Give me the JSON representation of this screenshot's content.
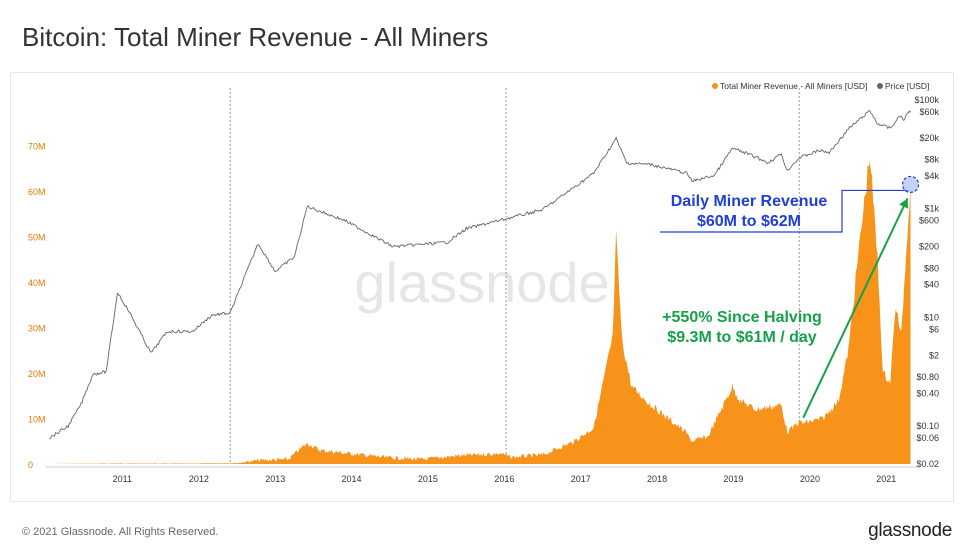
{
  "header": {
    "title": "Bitcoin: Total Miner Revenue - All Miners"
  },
  "footer": {
    "copyright": "© 2021 Glassnode. All Rights Reserved.",
    "brand": "glassnode"
  },
  "watermark": "glassnode",
  "colors": {
    "revenue": "#f7931a",
    "price": "#666666",
    "annotation_blue": "#1f3fd6",
    "annotation_green": "#17a04a"
  },
  "chart_data": {
    "type": "area",
    "title": "",
    "legend": {
      "placement": "top-right",
      "entries": [
        {
          "name": "Total Miner Revenue - All Miners [USD]",
          "color": "#f7931a"
        },
        {
          "name": "Price [USD]",
          "color": "#666666"
        }
      ]
    },
    "x": {
      "type": "date",
      "range": [
        "2010-07-01",
        "2021-11-01"
      ],
      "tick_labels": [
        "2011",
        "2012",
        "2013",
        "2014",
        "2015",
        "2016",
        "2017",
        "2018",
        "2019",
        "2020",
        "2021"
      ]
    },
    "y_left": {
      "label": "",
      "range": [
        0,
        80000000
      ],
      "tick_values": [
        0,
        10000000,
        20000000,
        30000000,
        40000000,
        50000000,
        60000000,
        70000000
      ],
      "tick_labels": [
        "0",
        "10M",
        "20M",
        "30M",
        "40M",
        "50M",
        "60M",
        "70M"
      ]
    },
    "y_right": {
      "label": "",
      "scale": "log",
      "range": [
        0.02,
        100000
      ],
      "tick_values": [
        0.02,
        0.06,
        0.1,
        0.4,
        0.8,
        2,
        6,
        10,
        40,
        80,
        200,
        600,
        1000,
        4000,
        8000,
        20000,
        60000,
        100000
      ],
      "tick_labels": [
        "$0.02",
        "$0.06",
        "$0.10",
        "$0.40",
        "$0.80",
        "$2",
        "$6",
        "$10",
        "$40",
        "$80",
        "$200",
        "$600",
        "$1k",
        "$4k",
        "$8k",
        "$20k",
        "$60k",
        "$100k"
      ]
    },
    "grid": {
      "horizontal": false,
      "vertical_dotted_at": [
        "2012-11-28",
        "2016-07-09",
        "2020-05-11"
      ]
    },
    "series": [
      {
        "name": "Total Miner Revenue - All Miners [USD]",
        "axis": "left",
        "points": [
          [
            "2010-07-01",
            1000
          ],
          [
            "2011-06-01",
            100000
          ],
          [
            "2012-06-01",
            80000
          ],
          [
            "2013-01-01",
            200000
          ],
          [
            "2013-04-10",
            800000
          ],
          [
            "2013-09-01",
            1000000
          ],
          [
            "2013-11-15",
            4000000
          ],
          [
            "2013-12-05",
            4500000
          ],
          [
            "2014-02-01",
            3000000
          ],
          [
            "2014-06-01",
            2400000
          ],
          [
            "2014-12-01",
            1500000
          ],
          [
            "2015-06-01",
            1000000
          ],
          [
            "2015-11-15",
            1800000
          ],
          [
            "2016-06-15",
            2300000
          ],
          [
            "2016-08-01",
            1500000
          ],
          [
            "2016-12-31",
            2000000
          ],
          [
            "2017-06-01",
            5000000
          ],
          [
            "2017-09-01",
            8000000
          ],
          [
            "2017-12-01",
            28000000
          ],
          [
            "2017-12-17",
            50000000
          ],
          [
            "2018-01-15",
            27000000
          ],
          [
            "2018-03-01",
            17000000
          ],
          [
            "2018-06-01",
            13000000
          ],
          [
            "2018-11-15",
            7000000
          ],
          [
            "2018-12-15",
            5000000
          ],
          [
            "2019-03-01",
            6000000
          ],
          [
            "2019-06-26",
            17000000
          ],
          [
            "2019-08-01",
            14000000
          ],
          [
            "2019-10-15",
            12000000
          ],
          [
            "2020-02-15",
            13000000
          ],
          [
            "2020-03-15",
            7000000
          ],
          [
            "2020-05-11",
            9300000
          ],
          [
            "2020-06-01",
            9000000
          ],
          [
            "2020-09-01",
            10000000
          ],
          [
            "2020-11-15",
            14000000
          ],
          [
            "2021-01-01",
            25000000
          ],
          [
            "2021-02-15",
            45000000
          ],
          [
            "2021-04-13",
            68000000
          ],
          [
            "2021-05-20",
            45000000
          ],
          [
            "2021-06-15",
            20000000
          ],
          [
            "2021-07-20",
            18000000
          ],
          [
            "2021-08-15",
            35000000
          ],
          [
            "2021-09-10",
            28000000
          ],
          [
            "2021-10-15",
            55000000
          ],
          [
            "2021-10-25",
            61000000
          ]
        ]
      },
      {
        "name": "Price [USD]",
        "axis": "right",
        "points": [
          [
            "2010-07-17",
            0.06
          ],
          [
            "2010-10-15",
            0.1
          ],
          [
            "2010-12-15",
            0.25
          ],
          [
            "2011-02-10",
            0.9
          ],
          [
            "2011-04-15",
            1.0
          ],
          [
            "2011-06-08",
            29
          ],
          [
            "2011-08-01",
            13
          ],
          [
            "2011-11-15",
            2.2
          ],
          [
            "2012-02-01",
            5.5
          ],
          [
            "2012-06-01",
            5.5
          ],
          [
            "2012-09-01",
            11
          ],
          [
            "2012-11-28",
            12
          ],
          [
            "2013-04-10",
            230
          ],
          [
            "2013-07-01",
            70
          ],
          [
            "2013-10-01",
            130
          ],
          [
            "2013-12-01",
            1100
          ],
          [
            "2014-06-01",
            600
          ],
          [
            "2015-01-15",
            200
          ],
          [
            "2015-10-01",
            240
          ],
          [
            "2016-01-01",
            430
          ],
          [
            "2016-07-09",
            650
          ],
          [
            "2016-12-31",
            960
          ],
          [
            "2017-06-01",
            2500
          ],
          [
            "2017-09-01",
            4500
          ],
          [
            "2017-12-17",
            19500
          ],
          [
            "2018-02-06",
            6900
          ],
          [
            "2018-06-01",
            6500
          ],
          [
            "2018-11-20",
            4500
          ],
          [
            "2018-12-15",
            3200
          ],
          [
            "2019-04-01",
            4100
          ],
          [
            "2019-06-26",
            12900
          ],
          [
            "2019-09-15",
            10000
          ],
          [
            "2019-12-15",
            7000
          ],
          [
            "2020-02-15",
            10300
          ],
          [
            "2020-03-13",
            5000
          ],
          [
            "2020-05-11",
            8600
          ],
          [
            "2020-08-15",
            11800
          ],
          [
            "2020-10-01",
            10700
          ],
          [
            "2020-12-31",
            29000
          ],
          [
            "2021-04-13",
            63500
          ],
          [
            "2021-05-20",
            37000
          ],
          [
            "2021-07-20",
            30000
          ],
          [
            "2021-09-06",
            52000
          ],
          [
            "2021-09-21",
            42000
          ],
          [
            "2021-10-20",
            64000
          ],
          [
            "2021-10-25",
            62000
          ]
        ]
      }
    ],
    "annotations": [
      {
        "text": [
          "Daily Miner Revenue",
          "$60M to $62M"
        ],
        "color": "#1f3fd6",
        "target": [
          "2021-10-25",
          61000000
        ]
      },
      {
        "text": [
          "+550% Since Halving",
          "$9.3M to $61M / day"
        ],
        "color": "#17a04a",
        "from": [
          "2020-05-11",
          9300000
        ],
        "to": [
          "2021-10-25",
          61000000
        ]
      }
    ]
  }
}
